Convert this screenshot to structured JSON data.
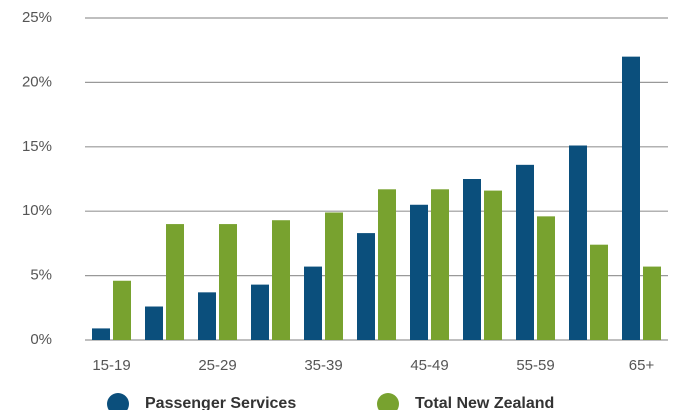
{
  "chart_data": {
    "type": "bar",
    "categories": [
      "15-19",
      null,
      "25-29",
      null,
      "35-39",
      null,
      "45-49",
      null,
      "55-59",
      null,
      "65+"
    ],
    "series": [
      {
        "name": "Passenger Services",
        "color": "#0b4f7c",
        "values": [
          0.9,
          2.6,
          3.7,
          4.3,
          5.7,
          8.3,
          10.5,
          12.5,
          13.6,
          15.1,
          22.0
        ]
      },
      {
        "name": "Total New Zealand",
        "color": "#78a22f",
        "values": [
          4.6,
          9.0,
          9.0,
          9.3,
          9.9,
          11.7,
          11.7,
          11.6,
          9.6,
          7.4,
          5.7
        ]
      }
    ],
    "ylim": [
      0,
      25
    ],
    "yticks": [
      {
        "value": 0,
        "label": "0%"
      },
      {
        "value": 5,
        "label": "5%"
      },
      {
        "value": 10,
        "label": "10%"
      },
      {
        "value": 15,
        "label": "15%"
      },
      {
        "value": 20,
        "label": "20%"
      },
      {
        "value": 25,
        "label": "25%"
      }
    ],
    "grid": true,
    "legend": "bottom"
  }
}
